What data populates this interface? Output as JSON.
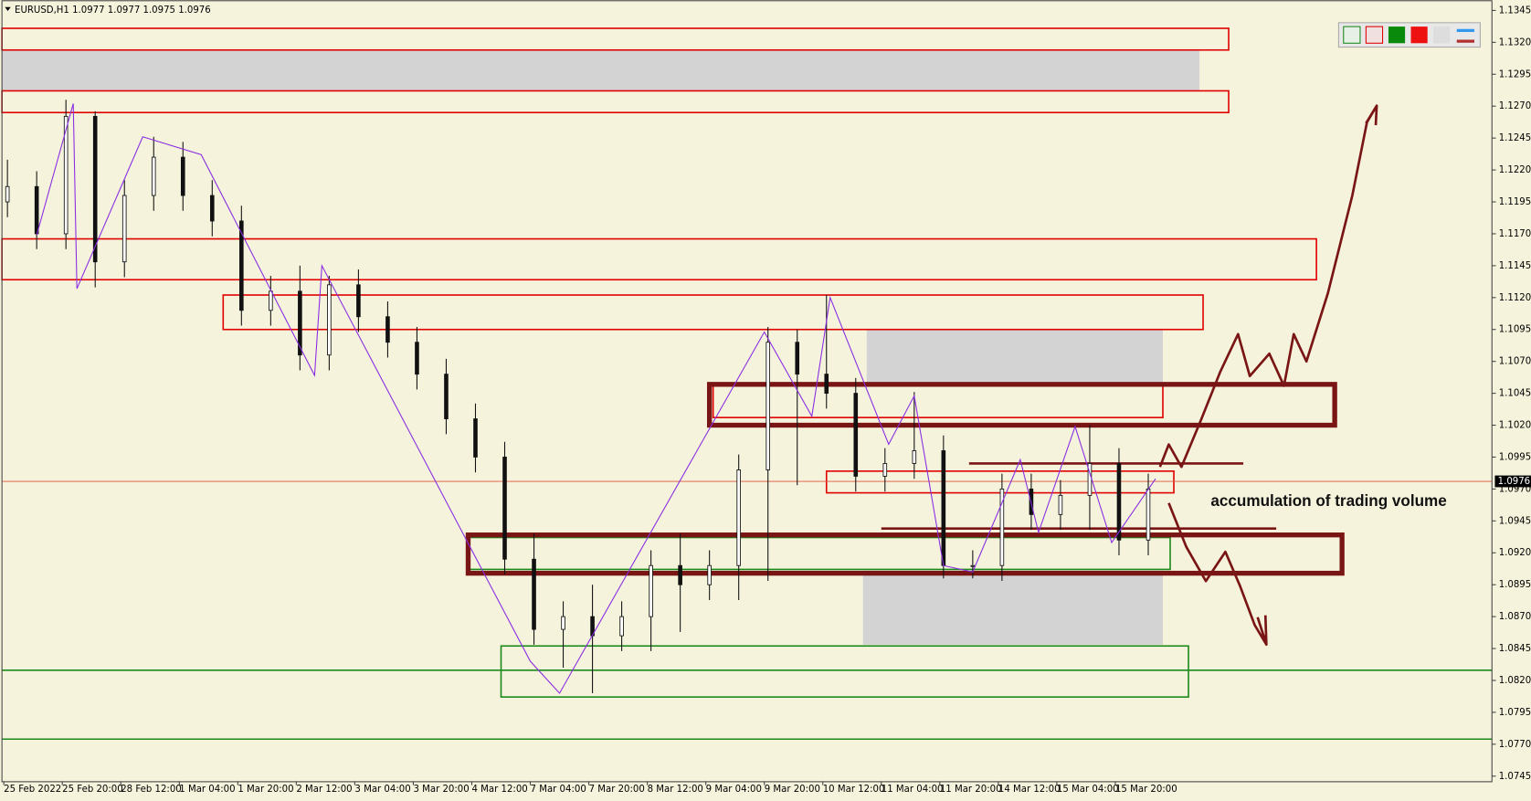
{
  "chart_data": {
    "type": "candlestick",
    "header": "EURUSD,H1  1.0977 1.0977 1.0975 1.0976",
    "annotation": "accumulation of trading volume",
    "xlim": [
      -0.5,
      407
    ],
    "ylim": [
      1.0741,
      1.1353
    ],
    "yticks": [
      1.1345,
      {
        "value": 1.132,
        "label": "1.1320"
      },
      1.1295,
      {
        "value": 1.127,
        "label": "1.1270"
      },
      1.1245,
      {
        "value": 1.122,
        "label": "1.1220"
      },
      1.1195,
      {
        "value": 1.117,
        "label": "1.1170"
      },
      1.1145,
      {
        "value": 1.112,
        "label": "1.1120"
      },
      1.1095,
      {
        "value": 1.107,
        "label": "1.1070"
      },
      1.1045,
      {
        "value": 1.102,
        "label": "1.1020"
      },
      1.0995,
      {
        "value": 1.097,
        "label": "1.0970"
      },
      1.0945,
      {
        "value": 1.092,
        "label": "1.0920"
      },
      1.0895,
      {
        "value": 1.087,
        "label": "1.0870"
      },
      1.0845,
      {
        "value": 1.082,
        "label": "1.0820"
      },
      1.0795,
      {
        "value": 1.077,
        "label": "1.0770"
      },
      1.0745
    ],
    "xticks": [
      {
        "value": 0,
        "label": "25 Feb 2022"
      },
      {
        "value": 16,
        "label": "25 Feb 20:00"
      },
      {
        "value": 32,
        "label": "28 Feb 12:00"
      },
      {
        "value": 48,
        "label": "1 Mar 04:00"
      },
      {
        "value": 64,
        "label": "1 Mar 20:00"
      },
      {
        "value": 80,
        "label": "2 Mar 12:00"
      },
      {
        "value": 96,
        "label": "3 Mar 04:00"
      },
      {
        "value": 112,
        "label": "3 Mar 20:00"
      },
      {
        "value": 128,
        "label": "4 Mar 12:00"
      },
      {
        "value": 144,
        "label": "7 Mar 04:00"
      },
      {
        "value": 160,
        "label": "7 Mar 20:00"
      },
      {
        "value": 176,
        "label": "8 Mar 12:00"
      },
      {
        "value": 192,
        "label": "9 Mar 04:00"
      },
      {
        "value": 208,
        "label": "9 Mar 20:00"
      },
      {
        "value": 224,
        "label": "10 Mar 12:00"
      },
      {
        "value": 240,
        "label": "11 Mar 04:00"
      },
      {
        "value": 256,
        "label": "11 Mar 20:00"
      },
      {
        "value": 272,
        "label": "14 Mar 12:00"
      },
      {
        "value": 288,
        "label": "15 Mar 04:00"
      },
      {
        "value": 304,
        "label": "15 Mar 20:00"
      }
    ],
    "current_price": 1.0976,
    "current_price_color": "#e0533a",
    "candles": {
      "x": [
        1,
        9,
        17,
        25,
        33,
        41,
        49,
        57,
        65,
        73,
        81,
        89,
        97,
        105,
        113,
        121,
        129,
        137,
        145,
        153,
        161,
        169,
        177,
        185,
        193,
        201,
        209,
        217,
        225,
        233,
        241,
        249,
        257,
        265,
        273,
        281,
        289,
        297,
        305,
        313
      ],
      "open": [
        1.1195,
        1.1207,
        1.117,
        1.1262,
        1.1148,
        1.12,
        1.123,
        1.12,
        1.118,
        1.111,
        1.1125,
        1.1075,
        1.113,
        1.1105,
        1.1085,
        1.106,
        1.1025,
        1.0995,
        1.0915,
        1.086,
        1.087,
        1.0855,
        1.087,
        1.091,
        1.0895,
        1.091,
        1.0985,
        1.1085,
        1.106,
        1.1045,
        1.098,
        1.099,
        1.1,
        1.091,
        1.091,
        1.097,
        1.095,
        1.0965,
        1.099,
        1.093
      ],
      "high": [
        1.1228,
        1.1219,
        1.1275,
        1.1266,
        1.1212,
        1.1246,
        1.1242,
        1.1212,
        1.1192,
        1.1137,
        1.1145,
        1.1137,
        1.1142,
        1.1117,
        1.1097,
        1.1072,
        1.1037,
        1.1007,
        1.0935,
        1.0882,
        1.0895,
        1.0882,
        1.0922,
        1.0935,
        1.0922,
        1.0997,
        1.1097,
        1.1095,
        1.1122,
        1.1057,
        1.1002,
        1.1046,
        1.1012,
        1.0922,
        1.0982,
        1.0982,
        1.0977,
        1.102,
        1.1002,
        1.0982
      ],
      "low": [
        1.1183,
        1.1158,
        1.1158,
        1.1128,
        1.1136,
        1.1188,
        1.1188,
        1.1168,
        1.1098,
        1.1098,
        1.1063,
        1.1063,
        1.1093,
        1.1073,
        1.1048,
        1.1013,
        1.0983,
        1.0903,
        1.0848,
        1.083,
        1.081,
        1.0843,
        1.0843,
        1.0858,
        1.0883,
        1.0883,
        1.0898,
        1.0973,
        1.1033,
        1.0968,
        1.0968,
        1.0978,
        1.09,
        1.09,
        1.0898,
        1.0938,
        1.0938,
        1.0938,
        1.0918,
        1.0918
      ],
      "close": [
        1.1207,
        1.117,
        1.1262,
        1.1148,
        1.12,
        1.123,
        1.12,
        1.118,
        1.111,
        1.1125,
        1.1075,
        1.113,
        1.1105,
        1.1085,
        1.106,
        1.1025,
        1.0995,
        1.0915,
        1.086,
        1.087,
        1.0855,
        1.087,
        1.091,
        1.0895,
        1.091,
        1.0985,
        1.1085,
        1.106,
        1.1045,
        1.098,
        1.099,
        1.1,
        1.091,
        1.091,
        1.097,
        1.095,
        1.0965,
        1.099,
        1.093,
        1.097
      ],
      "up_color": "#ffffff",
      "down_color": "#111111",
      "wick_color": "#111111"
    },
    "zigzag": {
      "color": "#8a2be2",
      "x": [
        9,
        19,
        20,
        38,
        54,
        85,
        87,
        144,
        152,
        208,
        221,
        226,
        242,
        249,
        257,
        265,
        278,
        283,
        293,
        303,
        315
      ],
      "price": [
        1.1169,
        1.1272,
        1.1127,
        1.1246,
        1.1232,
        1.1059,
        1.1145,
        1.0835,
        1.081,
        1.1093,
        1.1027,
        1.112,
        1.1005,
        1.1043,
        1.091,
        1.0905,
        1.0993,
        1.0936,
        1.1019,
        1.0928,
        1.0978
      ]
    },
    "zones": [
      {
        "x": [
          -0.5,
          327
        ],
        "price": [
          1.1282,
          1.1314
        ],
        "fill": "#d3d3d3",
        "stroke": "none",
        "width": 0
      },
      {
        "x": [
          236,
          317
        ],
        "price": [
          1.1051,
          1.1095
        ],
        "fill": "#d3d3d3",
        "stroke": "none",
        "width": 0
      },
      {
        "x": [
          235,
          317
        ],
        "price": [
          1.0848,
          1.0906
        ],
        "fill": "#d3d3d3",
        "stroke": "none",
        "width": 0
      },
      {
        "x": [
          -0.5,
          335
        ],
        "price": [
          1.1314,
          1.1331
        ],
        "fill": "none",
        "stroke": "#e00000",
        "width": 1.5
      },
      {
        "x": [
          -0.5,
          335
        ],
        "price": [
          1.1265,
          1.1282
        ],
        "fill": "none",
        "stroke": "#e00000",
        "width": 1.5
      },
      {
        "x": [
          -0.5,
          359
        ],
        "price": [
          1.1134,
          1.1166
        ],
        "fill": "none",
        "stroke": "#e00000",
        "width": 1.5
      },
      {
        "x": [
          60,
          328
        ],
        "price": [
          1.1095,
          1.1122
        ],
        "fill": "none",
        "stroke": "#e00000",
        "width": 1.5
      },
      {
        "x": [
          194,
          317
        ],
        "price": [
          1.1026,
          1.1051
        ],
        "fill": "none",
        "stroke": "#e00000",
        "width": 1.5
      },
      {
        "x": [
          225,
          320
        ],
        "price": [
          1.0967,
          1.0984
        ],
        "fill": "none",
        "stroke": "#e00000",
        "width": 1.5
      },
      {
        "x": [
          127,
          319
        ],
        "price": [
          1.0907,
          1.0932
        ],
        "fill": "none",
        "stroke": "#1a8a1a",
        "width": 1.5
      },
      {
        "x": [
          136,
          324
        ],
        "price": [
          1.0807,
          1.0847
        ],
        "fill": "none",
        "stroke": "#1a8a1a",
        "width": 1.5
      },
      {
        "x": [
          193,
          364
        ],
        "price": [
          1.102,
          1.1052
        ],
        "fill": "none",
        "stroke": "#7a1515",
        "width": 5
      },
      {
        "x": [
          127,
          366
        ],
        "price": [
          1.0904,
          1.0934
        ],
        "fill": "none",
        "stroke": "#7a1515",
        "width": 5
      }
    ],
    "lines": [
      {
        "x": [
          -0.5,
          407
        ],
        "price": 1.0828,
        "color": "#1a8a1a",
        "width": 1.5
      },
      {
        "x": [
          -0.5,
          407
        ],
        "price": 1.0774,
        "color": "#1a8a1a",
        "width": 1.5
      },
      {
        "x": [
          264,
          339
        ],
        "price": 1.099,
        "color": "#7a1515",
        "width": 2.5
      },
      {
        "x": [
          240,
          348
        ],
        "price": 1.0939,
        "color": "#7a1515",
        "width": 2.5
      }
    ]
  }
}
